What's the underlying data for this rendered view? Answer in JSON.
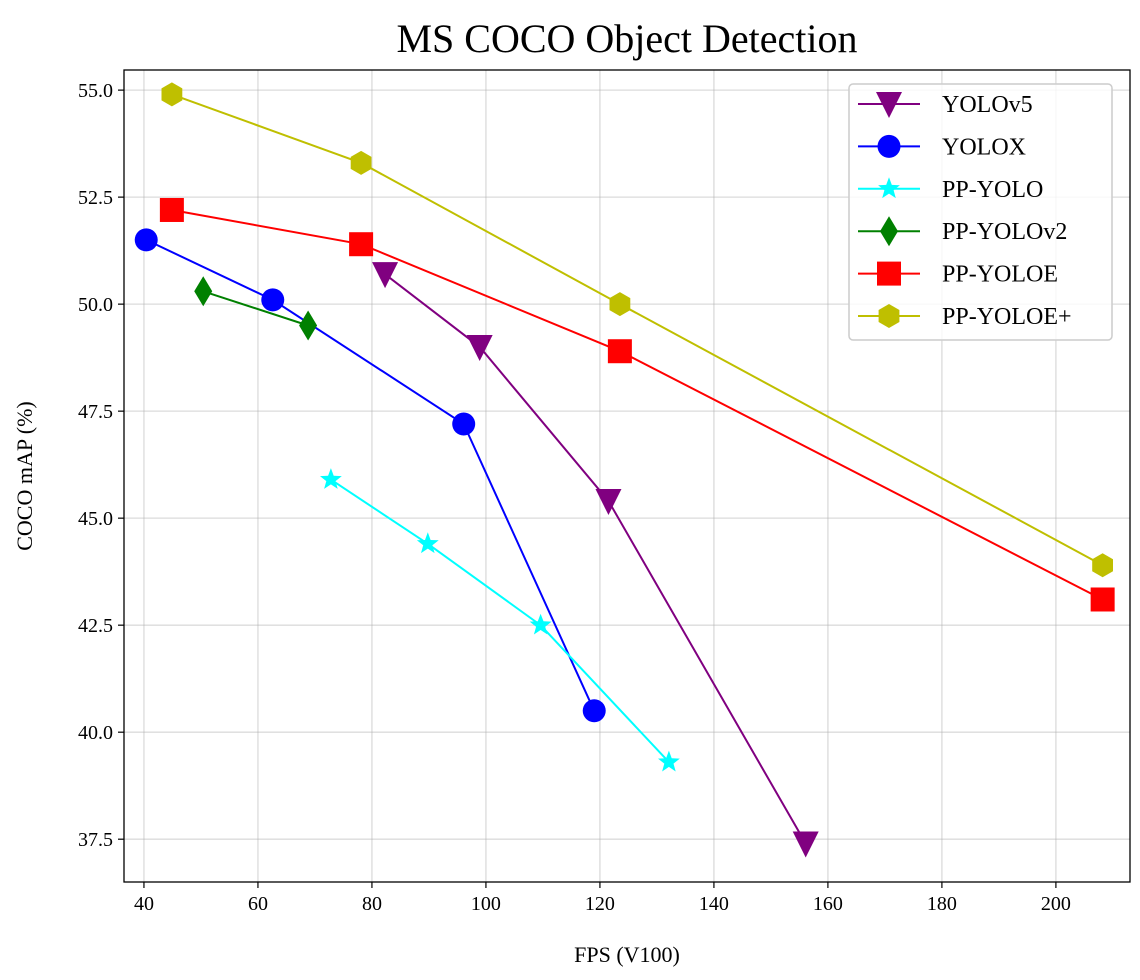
{
  "chart_data": {
    "type": "line",
    "title": "MS COCO Object Detection",
    "xlabel": "FPS (V100)",
    "ylabel": "COCO mAP (%)",
    "xlim": [
      36.5,
      213
    ],
    "ylim": [
      36.5,
      55.47
    ],
    "xticks": [
      40,
      60,
      80,
      100,
      120,
      140,
      160,
      180,
      200
    ],
    "xtick_labels": [
      "40",
      "60",
      "80",
      "100",
      "120",
      "140",
      "160",
      "180",
      "200"
    ],
    "yticks": [
      37.5,
      40.0,
      42.5,
      45.0,
      47.5,
      50.0,
      52.5,
      55.0
    ],
    "ytick_labels": [
      "37.5",
      "40.0",
      "42.5",
      "45.0",
      "47.5",
      "50.0",
      "52.5",
      "55.0"
    ],
    "grid": true,
    "legend_position": "top-right",
    "series": [
      {
        "name": "YOLOv5",
        "color": "#800080",
        "marker": "triangle-down",
        "x": [
          82.3,
          98.9,
          121.5,
          156.1
        ],
        "y": [
          50.7,
          49.0,
          45.4,
          37.4
        ]
      },
      {
        "name": "YOLOX",
        "color": "#0000ff",
        "marker": "circle",
        "x": [
          40.4,
          62.6,
          96.1,
          119.0
        ],
        "y": [
          51.5,
          50.1,
          47.2,
          40.5
        ]
      },
      {
        "name": "PP-YOLO",
        "color": "#00ffff",
        "marker": "star",
        "x": [
          72.8,
          89.8,
          109.6,
          132.1
        ],
        "y": [
          45.9,
          44.4,
          42.5,
          39.3
        ]
      },
      {
        "name": "PP-YOLOv2",
        "color": "#008000",
        "marker": "diamond",
        "x": [
          50.4,
          68.8
        ],
        "y": [
          50.3,
          49.5
        ]
      },
      {
        "name": "PP-YOLOE",
        "color": "#ff0000",
        "marker": "square",
        "x": [
          44.9,
          78.1,
          123.5,
          208.2
        ],
        "y": [
          52.2,
          51.4,
          48.9,
          43.1
        ]
      },
      {
        "name": "PP-YOLOE+",
        "color": "#bfbf00",
        "marker": "hexagon",
        "x": [
          44.9,
          78.1,
          123.5,
          208.2
        ],
        "y": [
          54.9,
          53.3,
          50.0,
          43.9
        ]
      }
    ]
  }
}
